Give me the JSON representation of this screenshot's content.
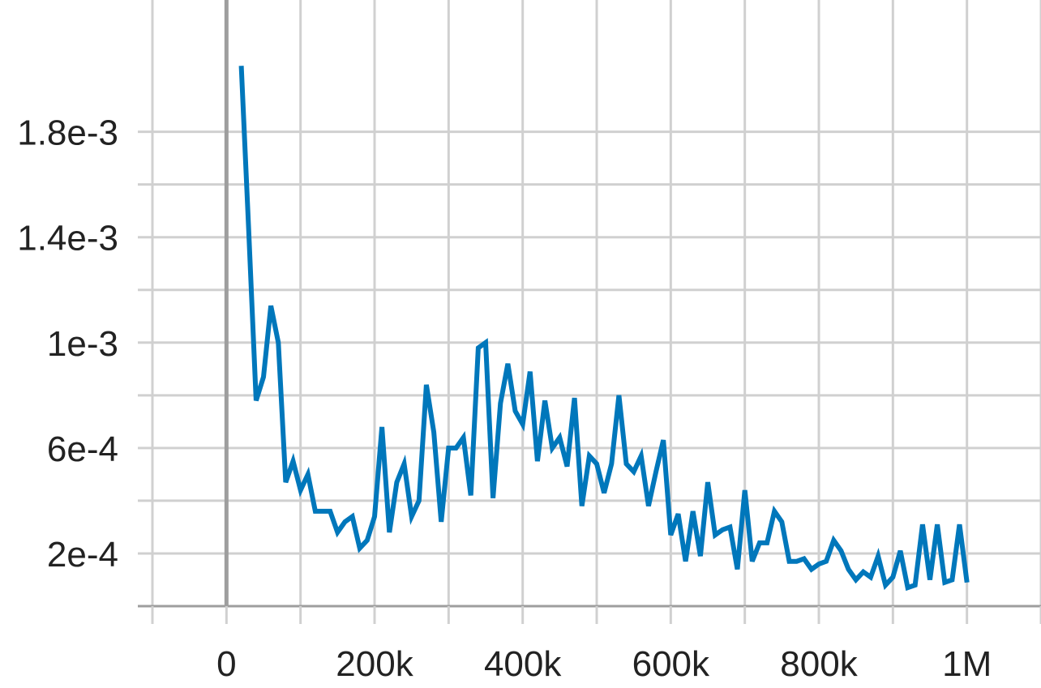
{
  "chart_data": {
    "type": "line",
    "title": "",
    "xlabel": "",
    "ylabel": "",
    "xlim": [
      -100000,
      1100000
    ],
    "ylim": [
      0,
      0.002
    ],
    "x_ticks": [
      {
        "value": 0,
        "label": "0"
      },
      {
        "value": 200000,
        "label": "200k"
      },
      {
        "value": 400000,
        "label": "400k"
      },
      {
        "value": 600000,
        "label": "600k"
      },
      {
        "value": 800000,
        "label": "800k"
      },
      {
        "value": 1000000,
        "label": "1M"
      }
    ],
    "x_minor_ticks": [
      -100000,
      100000,
      300000,
      500000,
      700000,
      900000,
      1100000
    ],
    "y_ticks": [
      {
        "value": 0.0002,
        "label": "2e-4"
      },
      {
        "value": 0.0006,
        "label": "6e-4"
      },
      {
        "value": 0.001,
        "label": "1e-3"
      },
      {
        "value": 0.0014,
        "label": "1.4e-3"
      },
      {
        "value": 0.0018,
        "label": "1.8e-3"
      }
    ],
    "y_minor_ticks": [
      0,
      0.0004,
      0.0008,
      0.0012,
      0.0016
    ],
    "grid": true,
    "colors": {
      "line": "#0077bb",
      "grid": "#d0d0d0",
      "zero_axis": "#9e9e9e",
      "frame": "#9e9e9e",
      "tick_text": "#222222"
    },
    "series": [
      {
        "x": [
          20000,
          30000,
          40000,
          50000,
          60000,
          70000,
          80000,
          90000,
          100000,
          110000,
          120000,
          130000,
          140000,
          150000,
          160000,
          170000,
          180000,
          190000,
          200000,
          210000,
          220000,
          230000,
          240000,
          250000,
          260000,
          270000,
          280000,
          290000,
          300000,
          310000,
          320000,
          330000,
          340000,
          350000,
          360000,
          370000,
          380000,
          390000,
          400000,
          410000,
          420000,
          430000,
          440000,
          450000,
          460000,
          470000,
          480000,
          490000,
          500000,
          510000,
          520000,
          530000,
          540000,
          550000,
          560000,
          570000,
          580000,
          590000,
          600000,
          610000,
          620000,
          630000,
          640000,
          650000,
          660000,
          670000,
          680000,
          690000,
          700000,
          710000,
          720000,
          730000,
          740000,
          750000,
          760000,
          770000,
          780000,
          790000,
          800000,
          810000,
          820000,
          830000,
          840000,
          850000,
          860000,
          870000,
          880000,
          890000,
          900000,
          910000,
          920000,
          930000,
          940000,
          950000,
          960000,
          970000,
          980000,
          990000,
          1000000
        ],
        "y": [
          0.00205,
          0.00143,
          0.00078,
          0.00087,
          0.00114,
          0.001,
          0.00047,
          0.00055,
          0.00044,
          0.0005,
          0.00036,
          0.00036,
          0.00036,
          0.00028,
          0.00032,
          0.00034,
          0.00022,
          0.00025,
          0.00034,
          0.00068,
          0.00028,
          0.00047,
          0.00054,
          0.00034,
          0.0004,
          0.00084,
          0.00066,
          0.00032,
          0.0006,
          0.0006,
          0.00064,
          0.00042,
          0.00098,
          0.001,
          0.00041,
          0.00077,
          0.00092,
          0.00074,
          0.00069,
          0.00089,
          0.00055,
          0.00078,
          0.0006,
          0.00064,
          0.00053,
          0.00079,
          0.00038,
          0.00057,
          0.00054,
          0.00043,
          0.00054,
          0.0008,
          0.00054,
          0.00051,
          0.00057,
          0.00038,
          0.00051,
          0.00063,
          0.00027,
          0.00035,
          0.00017,
          0.00036,
          0.00019,
          0.00047,
          0.00027,
          0.00029,
          0.0003,
          0.00014,
          0.00044,
          0.00017,
          0.00024,
          0.00024,
          0.00036,
          0.00032,
          0.00017,
          0.00017,
          0.00018,
          0.00014,
          0.00016,
          0.00017,
          0.00025,
          0.00021,
          0.00014,
          0.0001,
          0.00013,
          0.00011,
          0.00019,
          8e-05,
          0.00011,
          0.00021,
          7e-05,
          8e-05,
          0.00031,
          0.0001,
          0.00031,
          9e-05,
          0.0001,
          0.00031,
          9e-05
        ]
      }
    ]
  }
}
